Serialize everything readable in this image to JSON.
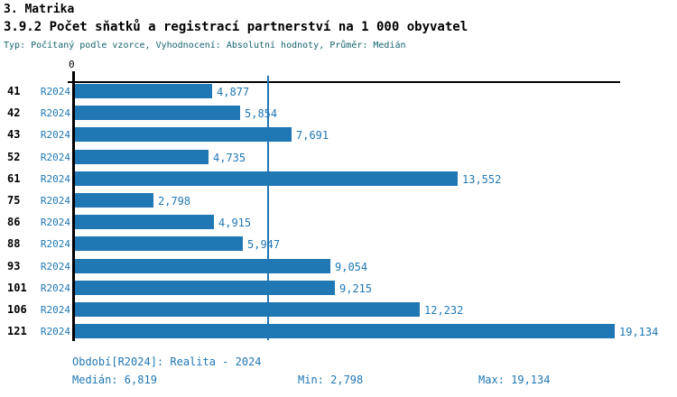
{
  "header": {
    "title": "3. Matrika",
    "subtitle": "3.9.2 Počet sňatků a registrací partnerství na 1 000 obyvatel",
    "meta": "Typ: Počítaný podle vzorce, Vyhodnocení: Absolutní hodnoty, Průměr: Medián"
  },
  "chart_data": {
    "type": "bar",
    "orientation": "horizontal",
    "title": "3.9.2 Počet sňatků a registrací partnerství na 1 000 obyvatel",
    "categories": [
      "41",
      "42",
      "43",
      "52",
      "61",
      "75",
      "86",
      "88",
      "93",
      "101",
      "106",
      "121"
    ],
    "series_label": "R2024",
    "values": [
      4.877,
      5.854,
      7.691,
      4.735,
      13.552,
      2.798,
      4.915,
      5.947,
      9.054,
      9.215,
      12.232,
      19.134
    ],
    "value_labels": [
      "4,877",
      "5,854",
      "7,691",
      "4,735",
      "13,552",
      "2,798",
      "4,915",
      "5,947",
      "9,054",
      "9,215",
      "12,232",
      "19,134"
    ],
    "axis": {
      "origin_label": "0",
      "xlim": [
        0,
        19.328
      ],
      "median": 6.819,
      "grid": false
    },
    "legend_position": "none",
    "colors": {
      "bar": "#1f77b4",
      "value_text": "#1f77b4",
      "median_line": "#1f77b4",
      "axis": "#000000"
    }
  },
  "footer": {
    "period": "Období[R2024]: Realita - 2024",
    "median": "Medián: 6,819",
    "min": "Min: 2,798",
    "max": "Max: 19,134"
  }
}
